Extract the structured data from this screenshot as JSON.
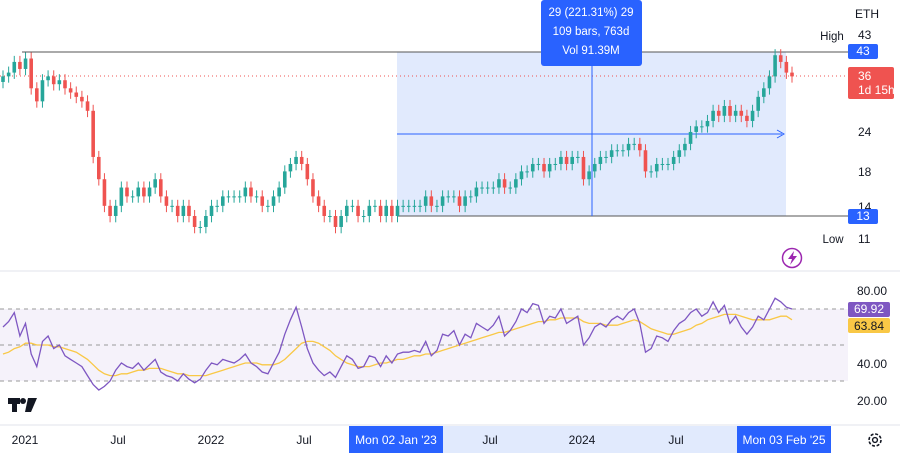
{
  "symbol": "ETH",
  "measure": {
    "line1": "29 (221.31%) 29",
    "line2": "109 bars, 763d",
    "line3": "Vol 91.39M"
  },
  "price_axis": {
    "ticks": [
      "43",
      "24",
      "18",
      "14",
      "11"
    ],
    "high_label": "High",
    "high_value": "43",
    "low_label": "Low",
    "low_value": "11",
    "measure_top": "43",
    "measure_bottom": "13",
    "last_price": "36",
    "countdown": "1d 15h"
  },
  "rsi_axis": {
    "ticks": [
      "80.00",
      "40.00",
      "20.00"
    ],
    "rsi_value": "69.92",
    "ma_value": "63.84"
  },
  "time_axis": {
    "labels": [
      "2021",
      "Jul",
      "2022",
      "Jul",
      "Jul",
      "2024",
      "Jul"
    ],
    "start_badge": "Mon 02 Jan '23",
    "end_badge": "Mon 03 Feb '25"
  },
  "logo": "TV",
  "colors": {
    "up": "#26a69a",
    "down": "#ef5350",
    "accent": "#2962ff",
    "rsi": "#7e57c2",
    "rsi_ma": "#f9c846",
    "range_fill": "#dce6fd"
  },
  "chart_data": {
    "type": "candlestick",
    "timeframe": "weekly",
    "price_scale": "log",
    "series_close": [
      36,
      37,
      40,
      38,
      41,
      33,
      30,
      35,
      36,
      34,
      35,
      33,
      32,
      31,
      30,
      28,
      20,
      17,
      14,
      13,
      14,
      16,
      15,
      15,
      16,
      15,
      16,
      17,
      15,
      14,
      14,
      13,
      14,
      13,
      12,
      12,
      13,
      14,
      14,
      15,
      15,
      15,
      15,
      16,
      15,
      15,
      14,
      14,
      15,
      16,
      18,
      19,
      20,
      19,
      17,
      15,
      14,
      13,
      13,
      12,
      13,
      14,
      14,
      13,
      13,
      14,
      14,
      13,
      14,
      13,
      14,
      14,
      14,
      14,
      14,
      15,
      14,
      14,
      15,
      15,
      15,
      14,
      15,
      15,
      16,
      16,
      16,
      16,
      17,
      16,
      16,
      17,
      18,
      18,
      19,
      19,
      18,
      19,
      19,
      20,
      19,
      20,
      20,
      17,
      18,
      19,
      20,
      20,
      21,
      21,
      21,
      22,
      22,
      21,
      18,
      18,
      19,
      19,
      19,
      20,
      21,
      22,
      24,
      25,
      25,
      26,
      28,
      27,
      29,
      27,
      28,
      27,
      26,
      28,
      31,
      33,
      36,
      42,
      40,
      37,
      36
    ],
    "measure": {
      "from": "Mon 02 Jan '23",
      "to": "Mon 03 Feb '25",
      "start": 13,
      "end": 43
    },
    "high": 43,
    "low": 11,
    "rsi": [
      60,
      63,
      68,
      55,
      62,
      45,
      38,
      52,
      55,
      48,
      50,
      44,
      42,
      40,
      38,
      33,
      28,
      25,
      27,
      30,
      36,
      40,
      38,
      37,
      40,
      36,
      39,
      42,
      35,
      33,
      32,
      30,
      34,
      31,
      29,
      31,
      36,
      40,
      39,
      42,
      41,
      40,
      42,
      45,
      40,
      38,
      35,
      34,
      40,
      46,
      56,
      64,
      71,
      60,
      48,
      40,
      36,
      33,
      35,
      32,
      38,
      44,
      42,
      37,
      38,
      44,
      43,
      38,
      44,
      40,
      45,
      46,
      46,
      47,
      46,
      52,
      44,
      47,
      56,
      55,
      58,
      50,
      56,
      54,
      62,
      60,
      58,
      61,
      66,
      55,
      58,
      63,
      70,
      68,
      73,
      72,
      62,
      66,
      65,
      70,
      62,
      64,
      66,
      50,
      54,
      60,
      62,
      60,
      64,
      66,
      64,
      68,
      70,
      62,
      46,
      48,
      55,
      54,
      52,
      58,
      62,
      64,
      68,
      70,
      66,
      68,
      74,
      68,
      72,
      62,
      66,
      60,
      56,
      60,
      66,
      64,
      70,
      76,
      74,
      71,
      70
    ],
    "rsi_ma": [
      45,
      46,
      48,
      49,
      51,
      51,
      50,
      50,
      50,
      49,
      49,
      48,
      47,
      46,
      44,
      42,
      39,
      36,
      34,
      33,
      33,
      34,
      34,
      35,
      36,
      36,
      37,
      37,
      37,
      36,
      35,
      34,
      34,
      33,
      33,
      33,
      33,
      34,
      35,
      36,
      37,
      38,
      39,
      40,
      40,
      40,
      39,
      39,
      39,
      40,
      42,
      45,
      48,
      51,
      52,
      52,
      51,
      49,
      47,
      44,
      42,
      40,
      39,
      38,
      38,
      38,
      39,
      40,
      40,
      41,
      42,
      42,
      43,
      44,
      44,
      45,
      45,
      46,
      47,
      48,
      49,
      50,
      51,
      52,
      53,
      54,
      55,
      56,
      57,
      57,
      58,
      59,
      60,
      61,
      62,
      63,
      63,
      64,
      64,
      65,
      65,
      65,
      65,
      63,
      62,
      62,
      62,
      61,
      61,
      61,
      62,
      63,
      64,
      63,
      61,
      59,
      58,
      57,
      56,
      56,
      57,
      58,
      59,
      61,
      62,
      64,
      65,
      66,
      67,
      67,
      67,
      66,
      65,
      64,
      64,
      64,
      64,
      65,
      66,
      66,
      64
    ],
    "rsi_levels": [
      70,
      50,
      30
    ],
    "rsi_ylim": [
      10,
      90
    ],
    "last_rsi": 69.92,
    "last_rsi_ma": 63.84
  }
}
